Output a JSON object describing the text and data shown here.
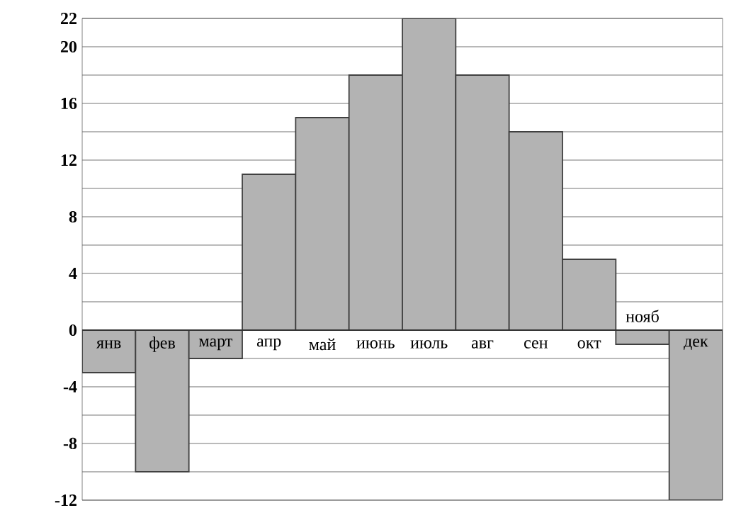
{
  "chart_data": {
    "type": "bar",
    "categories": [
      "янв",
      "фев",
      "март",
      "апр",
      "май",
      "июнь",
      "июль",
      "авг",
      "сен",
      "окт",
      "нояб",
      "дек"
    ],
    "values": [
      -3,
      -10,
      -2,
      11,
      15,
      18,
      22,
      18,
      14,
      5,
      -1,
      -12
    ],
    "color": "#b3b3b3",
    "ylim": [
      -12,
      22
    ],
    "yticks": [
      -12,
      {
        "value": -10,
        "label": null
      },
      -8,
      {
        "value": -6,
        "label": null
      },
      -4,
      {
        "value": -2,
        "label": null
      },
      0,
      {
        "value": 2,
        "label": null
      },
      4,
      {
        "value": 6,
        "label": null
      },
      8,
      {
        "value": 10,
        "label": null
      },
      12,
      {
        "value": 14,
        "label": null
      },
      16,
      {
        "value": 18,
        "label": null
      },
      20,
      22
    ],
    "grid": true
  }
}
